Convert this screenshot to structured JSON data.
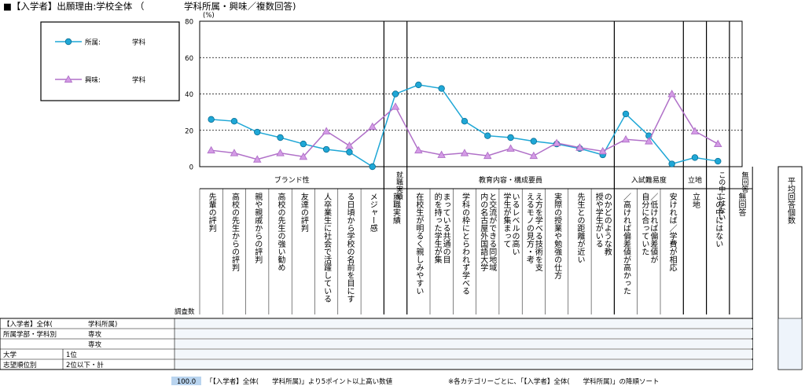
{
  "page": {
    "title": "■【入学者】出願理由:学校全体 （",
    "subtitle": "学科所属・興味／複数回答)"
  },
  "legend": {
    "items": [
      {
        "label": "所属:",
        "suffix": "学科",
        "color": "#1fa7d6",
        "marker": "circle"
      },
      {
        "label": "興味:",
        "suffix": "学科",
        "color": "#b070c8",
        "marker": "triangle"
      }
    ]
  },
  "chart_data": {
    "type": "line",
    "unit": "(%)",
    "ylim": [
      0,
      80
    ],
    "yticks": [
      "0",
      "20",
      "40",
      "60",
      "80"
    ],
    "grid": "dashed",
    "groups": [
      {
        "label": "ブランド性",
        "count": 8
      },
      {
        "label": "就職実績",
        "count": 1
      },
      {
        "label": "教育内容・構成要員",
        "count": 9
      },
      {
        "label": "入試難易度",
        "count": 3
      },
      {
        "label": "立地",
        "count": 1
      },
      {
        "label": "この中にはない",
        "count": 1
      },
      {
        "label": "無回答",
        "count": 1
      }
    ],
    "categories": [
      "先輩の評判",
      "高校の先生からの評判",
      "親や親戚からの評判",
      "高校の先生の強い勧め",
      "友達の評判",
      "卒業生が社会で活躍している",
      "日頃から学校の名前を目にする",
      "メジャー感",
      "就職実績",
      "在校生が明るく親しみやすい",
      "共通の目的を持った学生が集まっている",
      "学科の枠にとらわれず学べる",
      "同地域内の名古屋外国語大学と交流ができる",
      "レベルの高い学生が集まっている",
      "技術を支えるモノの見方・考え方を学べる",
      "実際の授業や勉強の仕方",
      "先生との距離が近い",
      "どのような教授や学生がいるのか",
      "偏差値が高かった／高ければ",
      "偏差値が自分に合っていた／低ければ",
      "学費が相応／安ければ",
      "立地",
      "この中にはない",
      "無回答"
    ],
    "category_display": [
      "先輩の評判",
      "高校の先生からの評判",
      "親や親戚からの評判",
      "高校の先生の強い勧め",
      "友達の評判",
      "人卒業生に社会で活躍している",
      "る日頃から学校の名前を目にす",
      "メジャー感",
      "就職実績",
      "在校生が明るく親しみやすい",
      "まっている共通の目的を持った学生が集",
      "学科の枠にとらわれず学べる",
      "と交流ができる同地域内の名古屋外国語大学",
      "いるレベルの高い学生が集まって",
      "え方を学べる技術を支えるモノの見方・考",
      "実際の授業や勉強の仕方",
      "先生との距離が近い",
      "のかどのような教授や学生がいる",
      "／高ければ偏差値が高かった",
      "／低ければ偏差値が自分に合っていた",
      "安ければ／学費が相応",
      "立地",
      "この中にはない",
      "無回答"
    ],
    "series": [
      {
        "name": "所属",
        "color": "#1fa7d6",
        "marker": "circle",
        "values": [
          26,
          25,
          19,
          16,
          12.5,
          9.5,
          8,
          0,
          40,
          45,
          43,
          25,
          17,
          16,
          14,
          12.5,
          10,
          6.5,
          29,
          17,
          1.5,
          5,
          3,
          null
        ]
      },
      {
        "name": "興味",
        "color": "#b070c8",
        "marker": "triangle",
        "values": [
          9,
          7.5,
          4,
          7.5,
          5.5,
          19.5,
          11.5,
          22,
          33,
          9,
          6.5,
          7.5,
          6,
          10,
          6,
          13,
          10.5,
          8.5,
          15,
          14,
          40,
          19.5,
          12.5,
          null
        ]
      }
    ],
    "extra_column": "平均回答個数"
  },
  "table": {
    "header_label": "調査数",
    "rows": [
      {
        "label": "【入学者】全体(",
        "label2": "学科所属)"
      },
      {
        "label": "所属学部・学科別",
        "label2": "専攻"
      },
      {
        "label": "",
        "label2": "専攻"
      },
      {
        "label": "大学",
        "label2": "1位"
      },
      {
        "label": "志望順位別",
        "label2": "2位以下・計"
      }
    ]
  },
  "footer": {
    "badge": "100.0",
    "note1": "「【入学者】全体(　　学科所属)」より5ポイント以上高い数値",
    "note2": "※各カテゴリーごとに、「【入学者】全体(　　学科所属)」の降順ソート"
  }
}
